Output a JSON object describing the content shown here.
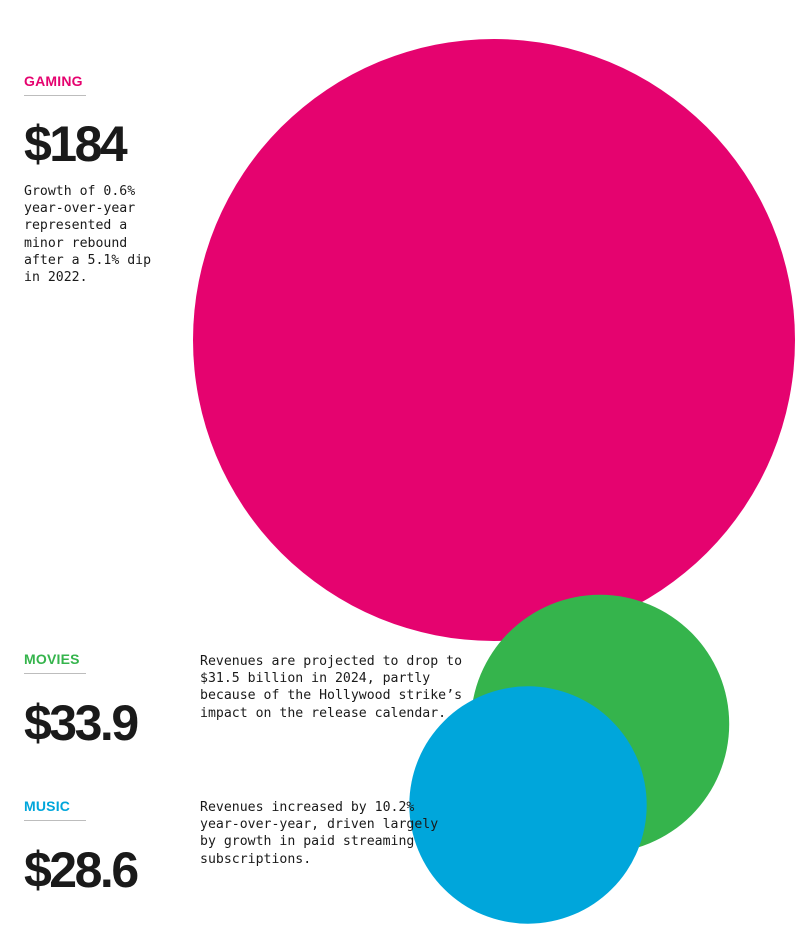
{
  "chart_data": {
    "type": "bubble",
    "categories": [
      "GAMING",
      "MOVIES",
      "MUSIC"
    ],
    "values": [
      184,
      33.9,
      28.6
    ],
    "value_labels": [
      "$184",
      "$33.9",
      "$28.6"
    ],
    "descriptions": [
      "Growth of 0.6% year-over-year represented a minor rebound after a 5.1% dip in 2022.",
      "Revenues are projected to drop to $31.5 billion in 2024, partly because of the Hollywood strike’s impact on the release calendar.",
      "Revenues increased by 10.2% year-over-year, driven largely by growth in paid streaming subscriptions."
    ],
    "colors": [
      "#e5036f",
      "#35b44c",
      "#00a6db"
    ]
  }
}
